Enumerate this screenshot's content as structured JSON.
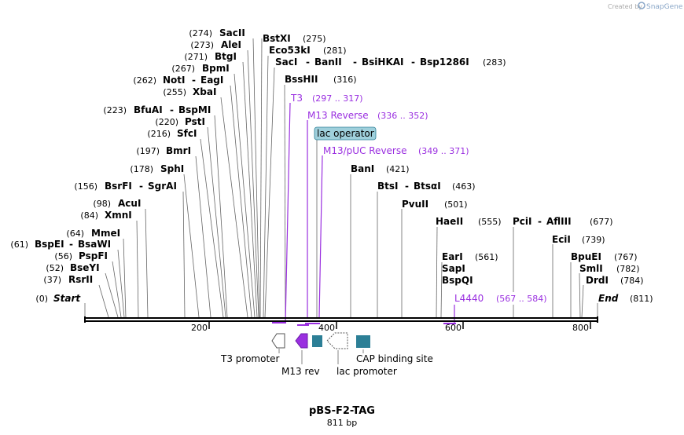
{
  "branding": {
    "created_by": "Created by",
    "app_name": "SnapGene"
  },
  "map": {
    "name": "pBS-F2-TAG",
    "length_label": "811 bp",
    "length": 811,
    "start_label": "Start",
    "end_label": "End",
    "start_pos": "(0)",
    "end_pos": "(811)"
  },
  "ruler": [
    {
      "value": 200,
      "label": "200"
    },
    {
      "value": 400,
      "label": "400"
    },
    {
      "value": 600,
      "label": "600"
    },
    {
      "value": 800,
      "label": "800"
    }
  ],
  "enzymes": [
    {
      "pos": 274,
      "pos_label": "(274)",
      "names": [
        "SacII"
      ]
    },
    {
      "pos": 273,
      "pos_label": "(273)",
      "names": [
        "AleI"
      ]
    },
    {
      "pos": 271,
      "pos_label": "(271)",
      "names": [
        "BtgI"
      ]
    },
    {
      "pos": 267,
      "pos_label": "(267)",
      "names": [
        "BpmI"
      ]
    },
    {
      "pos": 262,
      "pos_label": "(262)",
      "names": [
        "NotI",
        "EagI"
      ]
    },
    {
      "pos": 255,
      "pos_label": "(255)",
      "names": [
        "XbaI"
      ]
    },
    {
      "pos": 223,
      "pos_label": "(223)",
      "names": [
        "BfuAI",
        "BspMI"
      ]
    },
    {
      "pos": 220,
      "pos_label": "(220)",
      "names": [
        "PstI"
      ]
    },
    {
      "pos": 216,
      "pos_label": "(216)",
      "names": [
        "SfcI"
      ]
    },
    {
      "pos": 197,
      "pos_label": "(197)",
      "names": [
        "BmrI"
      ]
    },
    {
      "pos": 178,
      "pos_label": "(178)",
      "names": [
        "SphI"
      ]
    },
    {
      "pos": 156,
      "pos_label": "(156)",
      "names": [
        "BsrFI",
        "SgrAI"
      ]
    },
    {
      "pos": 98,
      "pos_label": "(98)",
      "names": [
        "AcuI"
      ]
    },
    {
      "pos": 84,
      "pos_label": "(84)",
      "names": [
        "XmnI"
      ]
    },
    {
      "pos": 64,
      "pos_label": "(64)",
      "names": [
        "MmeI"
      ]
    },
    {
      "pos": 61,
      "pos_label": "(61)",
      "names": [
        "BspEI",
        "BsaWI"
      ]
    },
    {
      "pos": 56,
      "pos_label": "(56)",
      "names": [
        "PspFI"
      ]
    },
    {
      "pos": 52,
      "pos_label": "(52)",
      "names": [
        "BseYI"
      ]
    },
    {
      "pos": 37,
      "pos_label": "(37)",
      "names": [
        "RsrII"
      ]
    },
    {
      "pos": 275,
      "pos_label": "(275)",
      "names": [
        "BstXI"
      ]
    },
    {
      "pos": 281,
      "pos_label": "(281)",
      "names": [
        "Eco53kI"
      ]
    },
    {
      "pos": 283,
      "pos_label": "(283)",
      "names": [
        "SacI",
        "BanII",
        "BsiHKAI",
        "Bsp1286I"
      ]
    },
    {
      "pos": 316,
      "pos_label": "(316)",
      "names": [
        "BssHII"
      ]
    },
    {
      "pos": 421,
      "pos_label": "(421)",
      "names": [
        "BanI"
      ]
    },
    {
      "pos": 463,
      "pos_label": "(463)",
      "names": [
        "BtsI",
        "BtsαI"
      ]
    },
    {
      "pos": 501,
      "pos_label": "(501)",
      "names": [
        "PvuII"
      ]
    },
    {
      "pos": 555,
      "pos_label": "(555)",
      "names": [
        "HaeII"
      ]
    },
    {
      "pos": 561,
      "pos_label": "(561)",
      "names": [
        "EarI",
        "SapI",
        "BspQI"
      ]
    },
    {
      "pos": 677,
      "pos_label": "(677)",
      "names": [
        "PciI",
        "AflIII"
      ]
    },
    {
      "pos": 739,
      "pos_label": "(739)",
      "names": [
        "EciI"
      ]
    },
    {
      "pos": 767,
      "pos_label": "(767)",
      "names": [
        "BpuEI"
      ]
    },
    {
      "pos": 782,
      "pos_label": "(782)",
      "names": [
        "SmlI"
      ]
    },
    {
      "pos": 784,
      "pos_label": "(784)",
      "names": [
        "DrdI"
      ]
    }
  ],
  "primers": [
    {
      "name": "T3",
      "range_label": "(297 .. 317)",
      "start": 297,
      "end": 317
    },
    {
      "name": "M13 Reverse",
      "range_label": "(336 .. 352)",
      "start": 336,
      "end": 352
    },
    {
      "name": "M13/pUC Reverse",
      "range_label": "(349 .. 371)",
      "start": 349,
      "end": 371
    },
    {
      "name": "L4440",
      "range_label": "(567 .. 584)",
      "start": 567,
      "end": 584
    }
  ],
  "features": [
    {
      "name": "lac operator",
      "kind": "protein_bind"
    },
    {
      "name": "T3 promoter",
      "kind": "promoter"
    },
    {
      "name": "M13 rev",
      "kind": "primer_bind"
    },
    {
      "name": "lac promoter",
      "kind": "promoter"
    },
    {
      "name": "CAP binding site",
      "kind": "protein_bind"
    }
  ],
  "colors": {
    "primer": "#9a2fe0",
    "feature_box": "#2c7f96",
    "lac_operator_fill": "#9fd0dc",
    "backbone": "#000000"
  }
}
